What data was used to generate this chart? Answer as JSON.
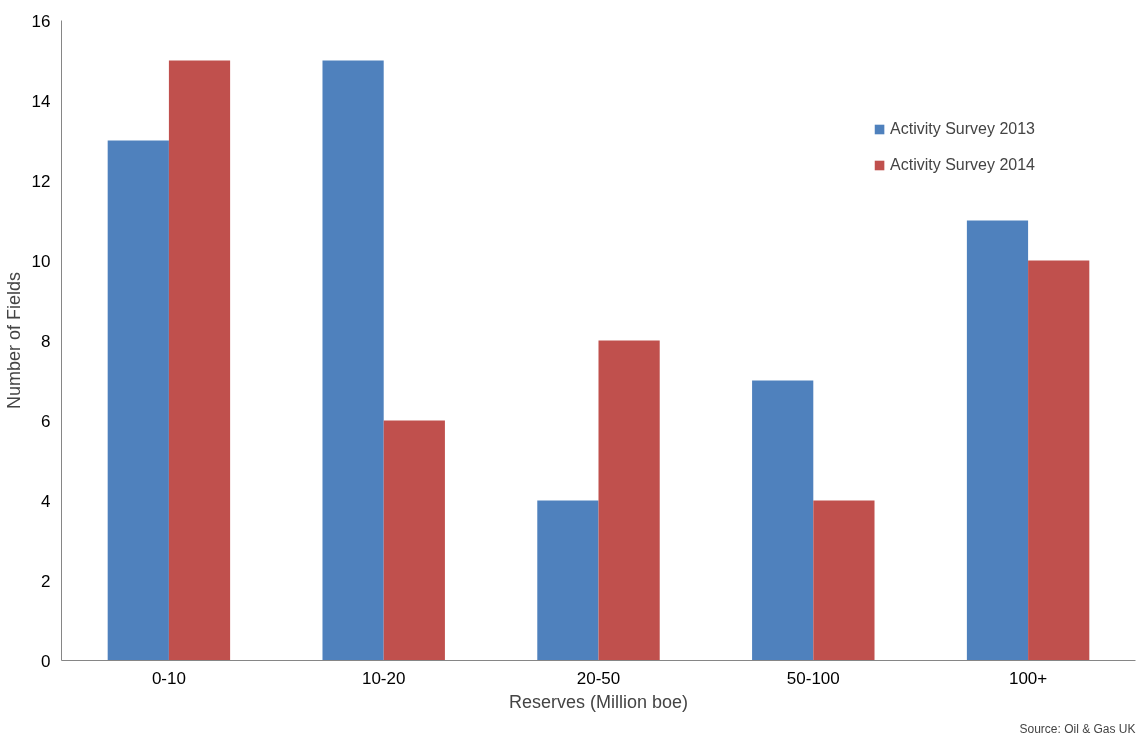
{
  "chart_data": {
    "type": "bar",
    "xlabel": "Reserves (Million boe)",
    "ylabel": "Number of Fields",
    "categories": [
      "0-10",
      "10-20",
      "20-50",
      "50-100",
      "100+"
    ],
    "series": [
      {
        "name": "Activity Survey 2013",
        "color": "#4f81bd",
        "values": [
          13,
          15,
          4,
          7,
          11
        ]
      },
      {
        "name": "Activity Survey 2014",
        "color": "#c0504d",
        "values": [
          15,
          6,
          8,
          4,
          10
        ]
      }
    ],
    "ylim": [
      0,
      16
    ],
    "yticks": [
      0,
      2,
      4,
      6,
      8,
      10,
      12,
      14,
      16
    ],
    "grid": false,
    "legend": "top right",
    "annotations": [
      "Source: Oil & Gas UK"
    ]
  }
}
